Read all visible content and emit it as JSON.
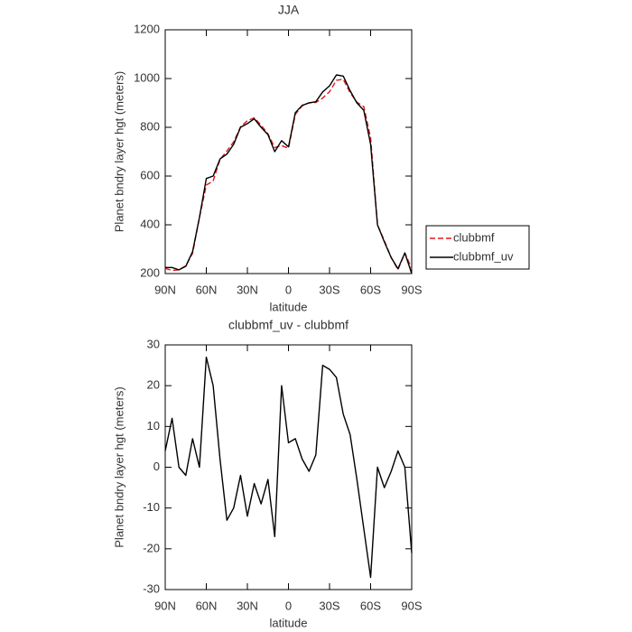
{
  "chart_data": [
    {
      "type": "line",
      "title": "JJA",
      "xlabel": "latitude",
      "ylabel": "Planet bndry layer hgt (meters)",
      "x": [
        90,
        85,
        80,
        75,
        70,
        65,
        60,
        55,
        50,
        45,
        40,
        35,
        30,
        25,
        20,
        15,
        10,
        5,
        0,
        -5,
        -10,
        -15,
        -20,
        -25,
        -30,
        -35,
        -40,
        -45,
        -50,
        -55,
        -60,
        -65,
        -70,
        -75,
        -80,
        -85,
        -90
      ],
      "series": [
        {
          "name": "clubbmf",
          "color": "#e01818",
          "linestyle": "dashed",
          "values": [
            221,
            213,
            215,
            232,
            283,
            430,
            563,
            580,
            668,
            703,
            740,
            802,
            827,
            839,
            809,
            773,
            717,
            725,
            714,
            853,
            888,
            901,
            902,
            920,
            946,
            993,
            997,
            942,
            903,
            885,
            757,
            400,
            335,
            266,
            216,
            285,
            221
          ]
        },
        {
          "name": "clubbmf_uv",
          "color": "#000000",
          "linestyle": "solid",
          "values": [
            225,
            225,
            215,
            230,
            290,
            430,
            590,
            600,
            670,
            690,
            730,
            800,
            815,
            835,
            800,
            770,
            700,
            745,
            720,
            860,
            890,
            900,
            905,
            945,
            970,
            1015,
            1010,
            950,
            900,
            870,
            730,
            400,
            330,
            265,
            220,
            285,
            200
          ]
        }
      ],
      "xlim": [
        90,
        -90
      ],
      "xticks": [
        {
          "value": 90,
          "label": "90N"
        },
        {
          "value": 60,
          "label": "60N"
        },
        {
          "value": 30,
          "label": "30N"
        },
        0,
        {
          "value": -30,
          "label": "30S"
        },
        {
          "value": -60,
          "label": "60S"
        },
        {
          "value": -90,
          "label": "90S"
        }
      ],
      "ylim": [
        200,
        1200
      ],
      "yticks": [
        200,
        400,
        600,
        800,
        1000,
        1200
      ],
      "legend": "right"
    },
    {
      "type": "line",
      "title": "clubbmf_uv - clubbmf",
      "xlabel": "latitude",
      "ylabel": "Planet bndry layer hgt (meters)",
      "x": [
        90,
        85,
        80,
        75,
        70,
        65,
        60,
        55,
        50,
        45,
        40,
        35,
        30,
        25,
        20,
        15,
        10,
        5,
        0,
        -5,
        -10,
        -15,
        -20,
        -25,
        -30,
        -35,
        -40,
        -45,
        -50,
        -55,
        -60,
        -65,
        -70,
        -75,
        -80,
        -85,
        -90
      ],
      "color": "#000000",
      "values": [
        4,
        12,
        0,
        -2,
        7,
        0,
        27,
        20,
        2,
        -13,
        -10,
        -2,
        -12,
        -4,
        -9,
        -3,
        -17,
        20,
        6,
        7,
        2,
        -1,
        3,
        25,
        24,
        22,
        13,
        8,
        -3,
        -15,
        -27,
        0,
        -5,
        -1,
        4,
        0,
        -21
      ],
      "xlim": [
        90,
        -90
      ],
      "xticks": [
        {
          "value": 90,
          "label": "90N"
        },
        {
          "value": 60,
          "label": "60N"
        },
        {
          "value": 30,
          "label": "30N"
        },
        0,
        {
          "value": -30,
          "label": "30S"
        },
        {
          "value": -60,
          "label": "60S"
        },
        {
          "value": -90,
          "label": "90S"
        }
      ],
      "ylim": [
        -30,
        30
      ],
      "yticks": [
        -30,
        -20,
        -10,
        0,
        10,
        20,
        30
      ]
    }
  ]
}
